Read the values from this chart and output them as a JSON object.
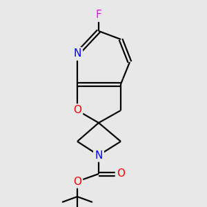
{
  "background_color": "#e8e8e8",
  "atom_colors": {
    "C": "#000000",
    "N": "#0000ff",
    "O": "#ff0000",
    "F": "#ff00ff"
  },
  "figsize": [
    3.0,
    3.0
  ],
  "dpi": 100
}
